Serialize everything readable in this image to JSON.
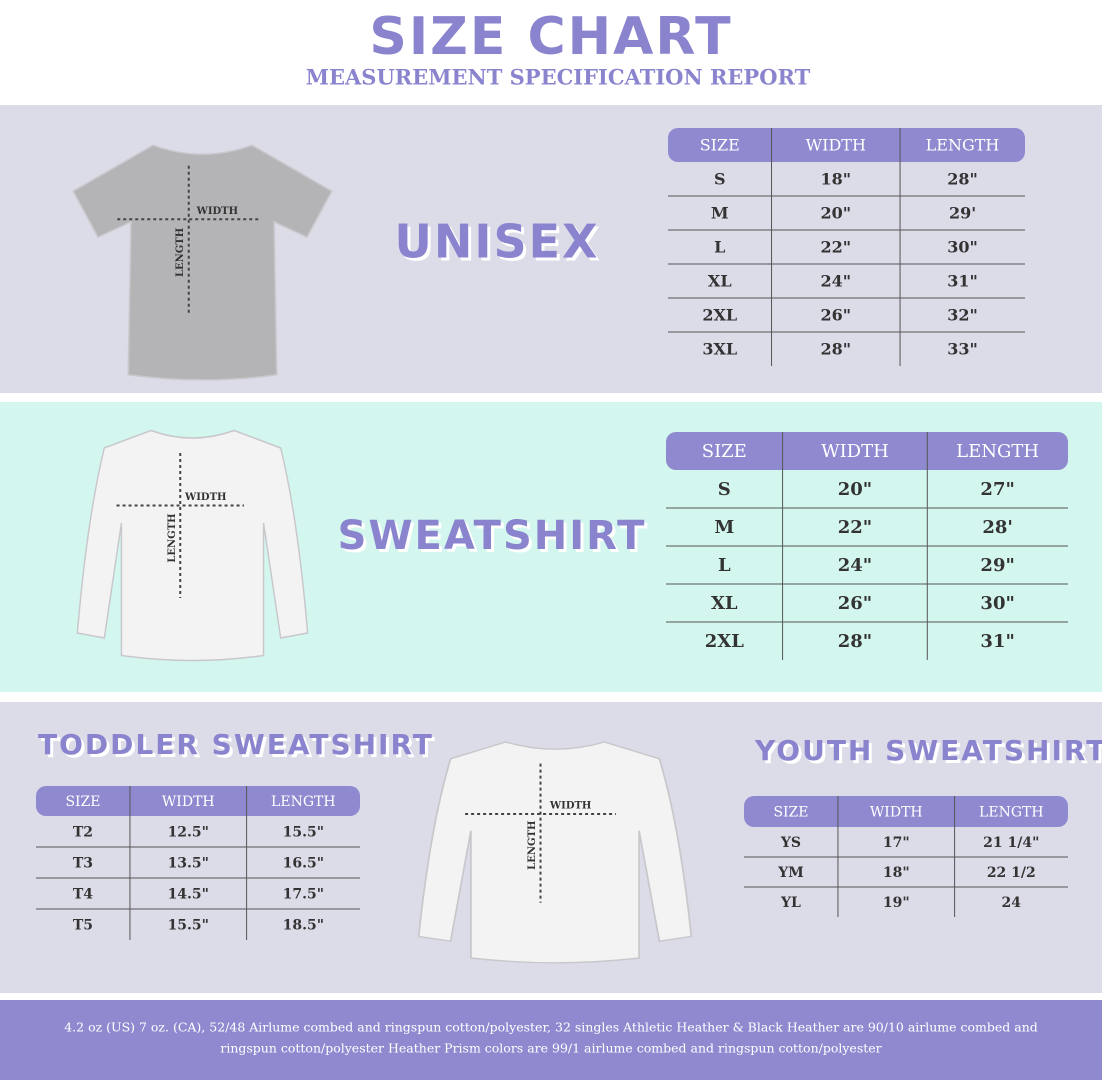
{
  "header": {
    "title": "SIZE CHART",
    "subtitle": "MEASUREMENT SPECIFICATION REPORT"
  },
  "sections": [
    {
      "title": "UNISEX",
      "diagram": {
        "width": "WIDTH",
        "length": "LENGTH"
      },
      "table": {
        "columns": [
          "SIZE",
          "WIDTH",
          "LENGTH"
        ],
        "rows": [
          [
            "S",
            "18\"",
            "28\""
          ],
          [
            "M",
            "20\"",
            "29'"
          ],
          [
            "L",
            "22\"",
            "30\""
          ],
          [
            "XL",
            "24\"",
            "31\""
          ],
          [
            "2XL",
            "26\"",
            "32\""
          ],
          [
            "3XL",
            "28\"",
            "33\""
          ]
        ]
      }
    },
    {
      "title": "SWEATSHIRT",
      "diagram": {
        "width": "WIDTH",
        "length": "LENGTH"
      },
      "table": {
        "columns": [
          "SIZE",
          "WIDTH",
          "LENGTH"
        ],
        "rows": [
          [
            "S",
            "20\"",
            "27\""
          ],
          [
            "M",
            "22\"",
            "28'"
          ],
          [
            "L",
            "24\"",
            "29\""
          ],
          [
            "XL",
            "26\"",
            "30\""
          ],
          [
            "2XL",
            "28\"",
            "31\""
          ]
        ]
      }
    },
    {
      "title": "TODDLER SWEATSHIRT",
      "table": {
        "columns": [
          "SIZE",
          "WIDTH",
          "LENGTH"
        ],
        "rows": [
          [
            "T2",
            "12.5\"",
            "15.5\""
          ],
          [
            "T3",
            "13.5\"",
            "16.5\""
          ],
          [
            "T4",
            "14.5\"",
            "17.5\""
          ],
          [
            "T5",
            "15.5\"",
            "18.5\""
          ]
        ]
      }
    },
    {
      "title": "YOUTH SWEATSHIRT",
      "diagram": {
        "width": "WIDTH",
        "length": "LENGTH"
      },
      "table": {
        "columns": [
          "SIZE",
          "WIDTH",
          "LENGTH"
        ],
        "rows": [
          [
            "YS",
            "17\"",
            "21 1/4\""
          ],
          [
            "YM",
            "18\"",
            "22 1/2"
          ],
          [
            "YL",
            "19\"",
            "24"
          ]
        ]
      }
    }
  ],
  "footer": {
    "lines": [
      "4.2 oz (US) 7 oz. (CA), 52/48 Airlume combed and ringspun cotton/polyester, 32 singles Athletic Heather & Black Heather are 90/10 airlume combed and",
      "ringspun cotton/polyester Heather Prism colors are 99/1 airlume combed and ringspun cotton/polyester"
    ]
  }
}
